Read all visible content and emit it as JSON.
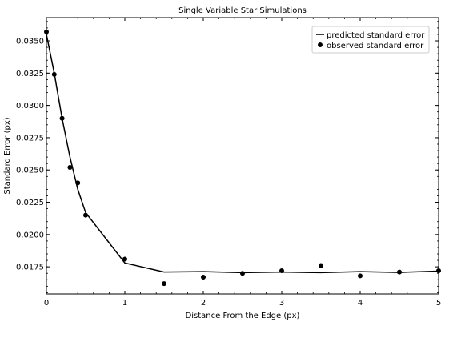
{
  "chart_data": {
    "type": "line",
    "title": "Single Variable Star Simulations",
    "xlabel": "Distance From the Edge (px)",
    "ylabel": "Standard Error (px)",
    "xlim": [
      0,
      5
    ],
    "ylim": [
      0.0154,
      0.0368
    ],
    "xticks": [
      0,
      1,
      2,
      3,
      4,
      5
    ],
    "xtick_labels": [
      "0",
      "1",
      "2",
      "3",
      "4",
      "5"
    ],
    "yticks": [
      0.0175,
      0.02,
      0.0225,
      0.025,
      0.0275,
      0.03,
      0.0325,
      0.035
    ],
    "ytick_labels": [
      "0.0175",
      "0.0200",
      "0.0225",
      "0.0250",
      "0.0275",
      "0.0300",
      "0.0325",
      "0.0350"
    ],
    "grid": false,
    "legend": {
      "position": "top-right",
      "entries": [
        "predicted standard error",
        "observed standard error"
      ]
    },
    "series": [
      {
        "name": "predicted standard error",
        "type": "line",
        "color": "#000000",
        "x": [
          0,
          0.1,
          0.2,
          0.3,
          0.4,
          0.5,
          1.0,
          1.5,
          2.0,
          2.5,
          3.0,
          3.5,
          4.0,
          4.5,
          5.0
        ],
        "y": [
          0.0355,
          0.0325,
          0.029,
          0.026,
          0.0235,
          0.0217,
          0.0178,
          0.0171,
          0.01713,
          0.01705,
          0.0171,
          0.01705,
          0.01713,
          0.01707,
          0.01717
        ]
      },
      {
        "name": "observed standard error",
        "type": "scatter",
        "color": "#000000",
        "x": [
          0,
          0.1,
          0.2,
          0.3,
          0.4,
          0.5,
          1.0,
          1.5,
          2.0,
          2.5,
          3.0,
          3.5,
          4.0,
          4.5,
          5.0
        ],
        "y": [
          0.0357,
          0.0324,
          0.029,
          0.0252,
          0.024,
          0.0215,
          0.0181,
          0.0162,
          0.0167,
          0.017,
          0.0172,
          0.0176,
          0.0168,
          0.0171,
          0.0172
        ]
      }
    ]
  }
}
